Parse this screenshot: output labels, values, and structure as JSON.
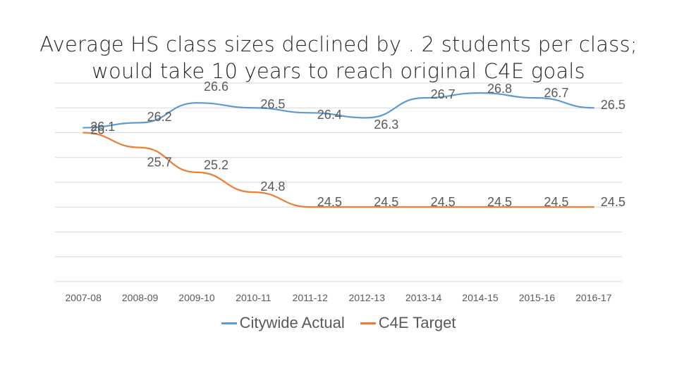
{
  "title_lines": [
    "Average HS class sizes declined by . 2 students per class;",
    "would take 10 years to reach original C4E goals"
  ],
  "colors": {
    "actual": "#5b9bd5",
    "target": "#ed7d31",
    "grid": "#d9d9d9"
  },
  "chart_data": {
    "type": "line",
    "title": "Average HS class sizes declined by . 2 students per class; would take 10 years to reach original C4E goals",
    "categories": [
      "2007-08",
      "2008-09",
      "2009-10",
      "2010-11",
      "2011-12",
      "2012-13",
      "2013-14",
      "2014-15",
      "2015-16",
      "2016-17"
    ],
    "series": [
      {
        "name": "Citywide Actual",
        "values": [
          26.1,
          26.2,
          26.6,
          26.5,
          26.4,
          26.3,
          26.7,
          26.8,
          26.7,
          26.5
        ],
        "labels": [
          "26.1",
          "26.2",
          "26.6",
          "26.5",
          "26.4",
          "26.3",
          "26.7",
          "26.8",
          "26.7",
          "26.5"
        ]
      },
      {
        "name": "C4E Target",
        "values": [
          26.0,
          25.7,
          25.2,
          24.8,
          24.5,
          24.5,
          24.5,
          24.5,
          24.5,
          24.5
        ],
        "labels": [
          "26",
          "25.7",
          "25.2",
          "24.8",
          "24.5",
          "24.5",
          "24.5",
          "24.5",
          "24.5",
          "24.5"
        ]
      }
    ],
    "ylim": [
      23,
      27
    ],
    "grid": true,
    "legend": "bottom"
  }
}
